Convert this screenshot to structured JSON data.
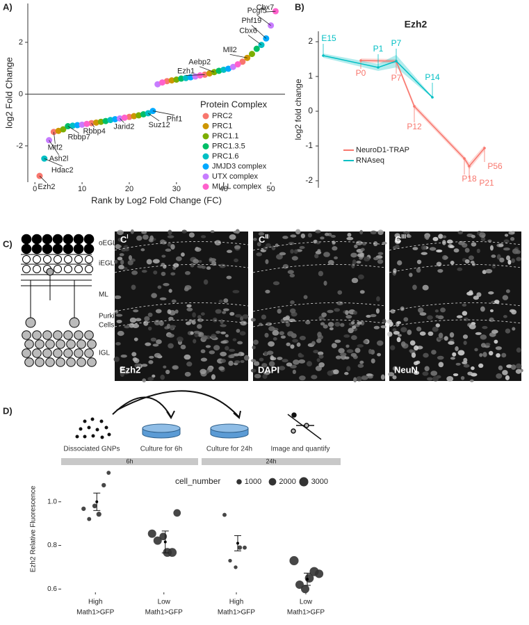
{
  "panel_labels": [
    "A)",
    "B)",
    "C)",
    "D)"
  ],
  "chart_data": [
    {
      "type": "scatter",
      "xlabel": "Rank by Log2 Fold Change (FC)",
      "ylabel": "log2 Fold Change",
      "xlim": [
        -1.5,
        53
      ],
      "ylim": [
        -3.4,
        3.5
      ],
      "xticks": [
        0,
        10,
        20,
        30,
        40,
        50
      ],
      "yticks": [
        -2,
        0,
        2
      ],
      "zero_line": true,
      "legend_title": "Protein Complex",
      "series": [
        {
          "name": "PRC2",
          "color": "#F8766D",
          "x": [
            1,
            4,
            12,
            20,
            28,
            36,
            44
          ],
          "values": [
            -3.16,
            -1.46,
            -1.12,
            -0.88,
            0.5,
            0.75,
            1.25
          ]
        },
        {
          "name": "PRC1",
          "color": "#CD9600",
          "x": [
            5,
            13,
            21,
            29,
            37,
            45
          ],
          "values": [
            -1.42,
            -1.1,
            -0.85,
            0.53,
            0.8,
            1.4
          ]
        },
        {
          "name": "PRC1.1",
          "color": "#7CAE00",
          "x": [
            6,
            14,
            22,
            30,
            38,
            46
          ],
          "values": [
            -1.36,
            -1.07,
            -0.82,
            0.56,
            0.85,
            1.55
          ]
        },
        {
          "name": "PRC1.3.5",
          "color": "#00BE67",
          "x": [
            7,
            15,
            23,
            31,
            39,
            47
          ],
          "values": [
            -1.24,
            -1.04,
            -0.78,
            0.6,
            0.9,
            1.75
          ]
        },
        {
          "name": "PRC1.6",
          "color": "#00BFC4",
          "x": [
            2,
            8,
            16,
            24,
            32,
            40,
            48
          ],
          "values": [
            -2.49,
            -1.22,
            -1.0,
            -0.74,
            0.62,
            0.94,
            1.9
          ]
        },
        {
          "name": "JMJD3 complex",
          "color": "#00A9FF",
          "x": [
            9,
            17,
            25,
            33,
            41,
            49
          ],
          "values": [
            -1.2,
            -0.97,
            -0.65,
            0.65,
            0.98,
            2.15
          ]
        },
        {
          "name": "UTX complex",
          "color": "#C77CFF",
          "x": [
            3,
            10,
            18,
            26,
            34,
            42,
            50
          ],
          "values": [
            -1.78,
            -1.18,
            -0.94,
            0.38,
            0.68,
            1.05,
            2.65
          ]
        },
        {
          "name": "MLLL complex",
          "color": "#FF61CC",
          "x": [
            11,
            19,
            27,
            35,
            43,
            51
          ],
          "values": [
            -1.15,
            -0.91,
            0.45,
            0.72,
            1.15,
            3.2
          ]
        }
      ],
      "annotations": [
        {
          "text": "Ezh2",
          "x": 1
        },
        {
          "text": "Hdac2",
          "x": 2
        },
        {
          "text": "Ash2l",
          "x": 3
        },
        {
          "text": "Mtf2",
          "x": 4
        },
        {
          "text": "Rbbp7",
          "x": 7
        },
        {
          "text": "Rbbp4",
          "x": 12
        },
        {
          "text": "Jarid2",
          "x": 18
        },
        {
          "text": "Suz12",
          "x": 24
        },
        {
          "text": "Phf1",
          "x": 25
        },
        {
          "text": "Ezh1",
          "x": 36
        },
        {
          "text": "Aebp2",
          "x": 38
        },
        {
          "text": "Mll2",
          "x": 45
        },
        {
          "text": "Cbx6",
          "x": 48
        },
        {
          "text": "Phf19",
          "x": 49
        },
        {
          "text": "Pcgf5",
          "x": 50
        },
        {
          "text": "Cbx7",
          "x": 51
        }
      ]
    },
    {
      "type": "line",
      "title": "Ezh2",
      "ylabel": "log2 fold change",
      "ylim": [
        -2.2,
        2.3
      ],
      "yticks": [
        -2,
        -1,
        0,
        1,
        2
      ],
      "series": [
        {
          "name": "NeuroD1-TRAP",
          "color": "#F8766D",
          "categories": [
            "P0",
            "P7",
            "P12",
            "P18",
            "P21",
            "P56"
          ],
          "values": [
            1.46,
            1.44,
            0.14,
            -1.36,
            -1.58,
            -1.06
          ],
          "error": [
            0.06,
            0.06,
            0.07,
            0.07,
            0.1,
            0.08
          ]
        },
        {
          "name": "RNAseq",
          "color": "#00BFC4",
          "categories": [
            "E15",
            "P1",
            "P7",
            "P14"
          ],
          "values": [
            1.6,
            1.26,
            1.44,
            0.4
          ],
          "error": [
            0.06,
            0.1,
            0.18,
            0.02
          ]
        }
      ]
    },
    {
      "type": "dotplot",
      "ylabel": "Ezh2 Relative Fluorescence",
      "ylim": [
        0.585,
        1.165
      ],
      "yticks": [
        0.6,
        0.8,
        {
          "value": 1,
          "label": "1.0"
        }
      ],
      "categories": [
        [
          "High",
          "Math1>GFP"
        ],
        [
          "Low",
          "Math1>GFP"
        ]
      ],
      "size_legend": {
        "title": "cell_number",
        "values": [
          1000,
          2000,
          3000
        ]
      },
      "facets": [
        {
          "label": "6h",
          "groups": [
            {
              "values": [
                0.968,
                0.921,
                0.981,
                0.943,
                1.076,
                1.133
              ],
              "sizes": [
                700,
                600,
                800,
                900,
                700,
                600
              ],
              "mean": 1.0,
              "error": 0.04
            },
            {
              "values": [
                0.854,
                0.822,
                0.841,
                0.768,
                0.768,
                0.949
              ],
              "sizes": [
                2500,
                2500,
                2000,
                2800,
                2800,
                2000
              ],
              "mean": 0.816,
              "error": 0.05
            }
          ]
        },
        {
          "label": "24h",
          "groups": [
            {
              "values": [
                0.94,
                0.73,
                0.7,
                0.79,
                0.79
              ],
              "sizes": [
                600,
                500,
                500,
                700,
                600
              ],
              "mean": 0.81,
              "error": 0.035
            },
            {
              "values": [
                0.73,
                0.62,
                0.6,
                0.65,
                0.68,
                0.67
              ],
              "sizes": [
                3000,
                2500,
                2500,
                2800,
                3000,
                2600
              ],
              "mean": 0.645,
              "error": 0.028
            }
          ]
        }
      ]
    }
  ],
  "histology": {
    "layers": [
      "oEGL",
      "iEGL",
      "ML",
      [
        "Purkinje",
        "Cells"
      ],
      "IGL"
    ],
    "panels": [
      {
        "tag": "C",
        "sup": "I",
        "stain": "Ezh2"
      },
      {
        "tag": "C",
        "sup": "II",
        "stain": "DAPI"
      },
      {
        "tag": "C",
        "sup": "III",
        "stain": "NeuN"
      }
    ]
  },
  "workflow": {
    "steps": [
      "Dissociated GNPs",
      "Culture for 6h",
      "Culture for 24h",
      "Image and quantify"
    ]
  }
}
